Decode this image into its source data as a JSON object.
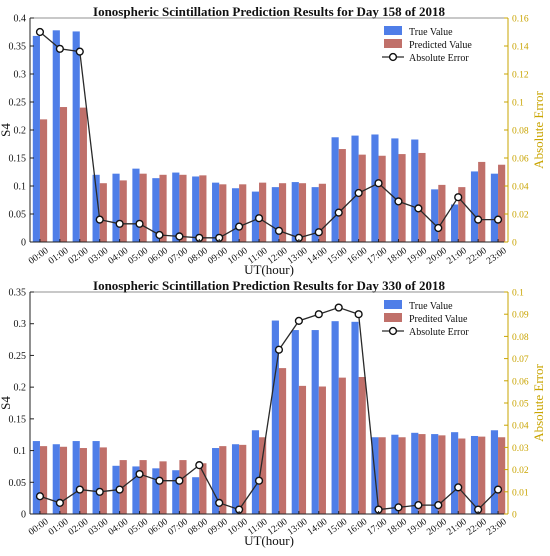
{
  "chart_data": [
    {
      "type": "bar",
      "title": "Ionospheric Scintillation Prediction Results for Day 158 of 2018",
      "xlabel": "UT(hour)",
      "ylabel": "S4",
      "y2label": "Absolute Error",
      "ylim": [
        0,
        0.4
      ],
      "y2lim": [
        0,
        0.16
      ],
      "yticks": [
        "0",
        "0.05",
        "0.1",
        "0.15",
        "0.2",
        "0.25",
        "0.3",
        "0.35",
        "0.4"
      ],
      "y2ticks": [
        "0",
        "0.02",
        "0.04",
        "0.06",
        "0.08",
        "0.1",
        "0.12",
        "0.14",
        "0.16"
      ],
      "categories": [
        "00:00",
        "01:00",
        "02:00",
        "03:00",
        "04:00",
        "05:00",
        "06:00",
        "07:00",
        "08:00",
        "09:00",
        "10:00",
        "11:00",
        "12:00",
        "13:00",
        "14:00",
        "15:00",
        "16:00",
        "17:00",
        "18:00",
        "19:00",
        "20:00",
        "21:00",
        "22:00",
        "23:00"
      ],
      "legend_position": "top-right",
      "grid": false,
      "series": [
        {
          "name": "True Value",
          "kind": "bar",
          "axis": "left",
          "color": "#4f7ee8",
          "values": [
            0.368,
            0.378,
            0.376,
            0.12,
            0.122,
            0.131,
            0.114,
            0.124,
            0.117,
            0.106,
            0.096,
            0.09,
            0.098,
            0.107,
            0.098,
            0.187,
            0.19,
            0.192,
            0.185,
            0.183,
            0.094,
            0.067,
            0.126,
            0.122
          ]
        },
        {
          "name": "Predicted Value",
          "kind": "bar",
          "axis": "left",
          "color": "#c0706a",
          "values": [
            0.219,
            0.241,
            0.24,
            0.105,
            0.11,
            0.122,
            0.12,
            0.12,
            0.119,
            0.103,
            0.103,
            0.106,
            0.105,
            0.105,
            0.104,
            0.166,
            0.156,
            0.154,
            0.157,
            0.159,
            0.102,
            0.098,
            0.143,
            0.138
          ]
        },
        {
          "name": "Absolute Error",
          "kind": "line",
          "axis": "right",
          "color": "#2a2a2a",
          "values": [
            0.15,
            0.138,
            0.136,
            0.016,
            0.013,
            0.013,
            0.005,
            0.004,
            0.003,
            0.003,
            0.011,
            0.017,
            0.008,
            0.003,
            0.007,
            0.021,
            0.035,
            0.042,
            0.029,
            0.024,
            0.01,
            0.032,
            0.016,
            0.016
          ]
        }
      ]
    },
    {
      "type": "bar",
      "title": "Ionospheric Scintillation Prediction Results for Day 330 of 2018",
      "xlabel": "UT(hour)",
      "ylabel": "S4",
      "y2label": "Absolute Error",
      "ylim": [
        0,
        0.35
      ],
      "y2lim": [
        0,
        0.1
      ],
      "yticks": [
        "0",
        "0.05",
        "0.1",
        "0.15",
        "0.2",
        "0.25",
        "0.3",
        "0.35"
      ],
      "y2ticks": [
        "0",
        "0.01",
        "0.02",
        "0.03",
        "0.04",
        "0.05",
        "0.06",
        "0.07",
        "0.08",
        "0.09",
        "0.1"
      ],
      "categories": [
        "00:00",
        "01:00",
        "02:00",
        "03:00",
        "04:00",
        "05:00",
        "06:00",
        "07:00",
        "08:00",
        "09:00",
        "10:00",
        "11:00",
        "12:00",
        "13:00",
        "14:00",
        "15:00",
        "16:00",
        "17:00",
        "18:00",
        "19:00",
        "20:00",
        "21:00",
        "22:00",
        "23:00"
      ],
      "legend_position": "top-right",
      "grid": false,
      "series": [
        {
          "name": "True Value",
          "kind": "bar",
          "axis": "left",
          "color": "#4f7ee8",
          "values": [
            0.115,
            0.11,
            0.115,
            0.115,
            0.076,
            0.075,
            0.072,
            0.069,
            0.058,
            0.104,
            0.11,
            0.132,
            0.305,
            0.29,
            0.29,
            0.304,
            0.303,
            0.121,
            0.125,
            0.128,
            0.126,
            0.129,
            0.123,
            0.132
          ]
        },
        {
          "name": "Predited Value",
          "kind": "bar",
          "axis": "left",
          "color": "#c0706a",
          "values": [
            0.107,
            0.106,
            0.104,
            0.105,
            0.085,
            0.085,
            0.083,
            0.085,
            0.08,
            0.107,
            0.109,
            0.121,
            0.23,
            0.202,
            0.201,
            0.215,
            0.216,
            0.121,
            0.121,
            0.126,
            0.124,
            0.119,
            0.122,
            0.121
          ]
        },
        {
          "name": "Absolute Error",
          "kind": "line",
          "axis": "right",
          "color": "#2a2a2a",
          "values": [
            0.008,
            0.005,
            0.011,
            0.01,
            0.011,
            0.018,
            0.015,
            0.015,
            0.022,
            0.005,
            0.002,
            0.015,
            0.074,
            0.087,
            0.09,
            0.093,
            0.09,
            0.002,
            0.003,
            0.004,
            0.004,
            0.012,
            0.002,
            0.011
          ]
        }
      ]
    }
  ]
}
